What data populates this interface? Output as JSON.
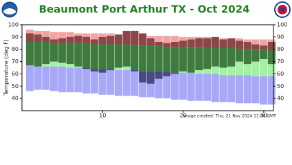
{
  "chart_data": {
    "type": "daily-range",
    "title": "Beaumont Port Arthur TX - Oct 2024",
    "y_label": "Temperature (deg F)",
    "note": "Image created: Thu, 21 Nov 2024 11:00 GMT",
    "x": [
      1,
      2,
      3,
      4,
      5,
      6,
      7,
      8,
      9,
      10,
      11,
      12,
      13,
      14,
      15,
      16,
      17,
      18,
      19,
      20,
      21,
      22,
      23,
      24,
      25,
      26,
      27,
      28,
      29,
      30,
      31
    ],
    "xlim": [
      0,
      31.2
    ],
    "xticks": [
      10,
      20,
      30
    ],
    "ylim": [
      30,
      100
    ],
    "yticks": [
      40,
      50,
      60,
      70,
      80,
      90,
      100
    ],
    "record_high": [
      96,
      95,
      95,
      94,
      94,
      94,
      93,
      93,
      93,
      93,
      93,
      92,
      92,
      92,
      92,
      91,
      91,
      91,
      91,
      90,
      90,
      90,
      90,
      89,
      89,
      89,
      89,
      88,
      88,
      88,
      88
    ],
    "normal_high": [
      86,
      86,
      86,
      85,
      85,
      85,
      85,
      85,
      84,
      84,
      84,
      84,
      84,
      83,
      83,
      83,
      83,
      82,
      82,
      82,
      82,
      82,
      81,
      81,
      81,
      81,
      80,
      80,
      80,
      80,
      79
    ],
    "normal_low": [
      67,
      66,
      66,
      66,
      66,
      65,
      65,
      65,
      64,
      64,
      64,
      63,
      63,
      63,
      62,
      62,
      62,
      62,
      61,
      61,
      61,
      60,
      60,
      60,
      59,
      59,
      59,
      59,
      58,
      58,
      58
    ],
    "record_low": [
      46,
      47,
      47,
      46,
      45,
      45,
      45,
      44,
      44,
      43,
      43,
      42,
      42,
      42,
      41,
      41,
      40,
      40,
      39,
      39,
      38,
      38,
      38,
      37,
      37,
      37,
      36,
      36,
      36,
      35,
      35
    ],
    "actual_high": [
      93,
      92,
      90,
      88,
      89,
      90,
      91,
      90,
      88,
      90,
      91,
      92,
      95,
      95,
      93,
      89,
      86,
      85,
      86,
      87,
      88,
      89,
      89,
      90,
      88,
      89,
      87,
      86,
      84,
      83,
      86
    ],
    "actual_low": [
      67,
      66,
      68,
      70,
      69,
      68,
      66,
      64,
      62,
      61,
      63,
      65,
      66,
      62,
      53,
      52,
      56,
      58,
      60,
      62,
      61,
      63,
      64,
      66,
      65,
      66,
      70,
      68,
      70,
      72,
      68
    ],
    "colors": {
      "record_high": "#f4a3a3",
      "normal": "#a3f2a3",
      "record_low": "#a8a8f8",
      "above": "#8a4747",
      "within": "#3f7a3f",
      "below": "#4a4a82"
    }
  }
}
